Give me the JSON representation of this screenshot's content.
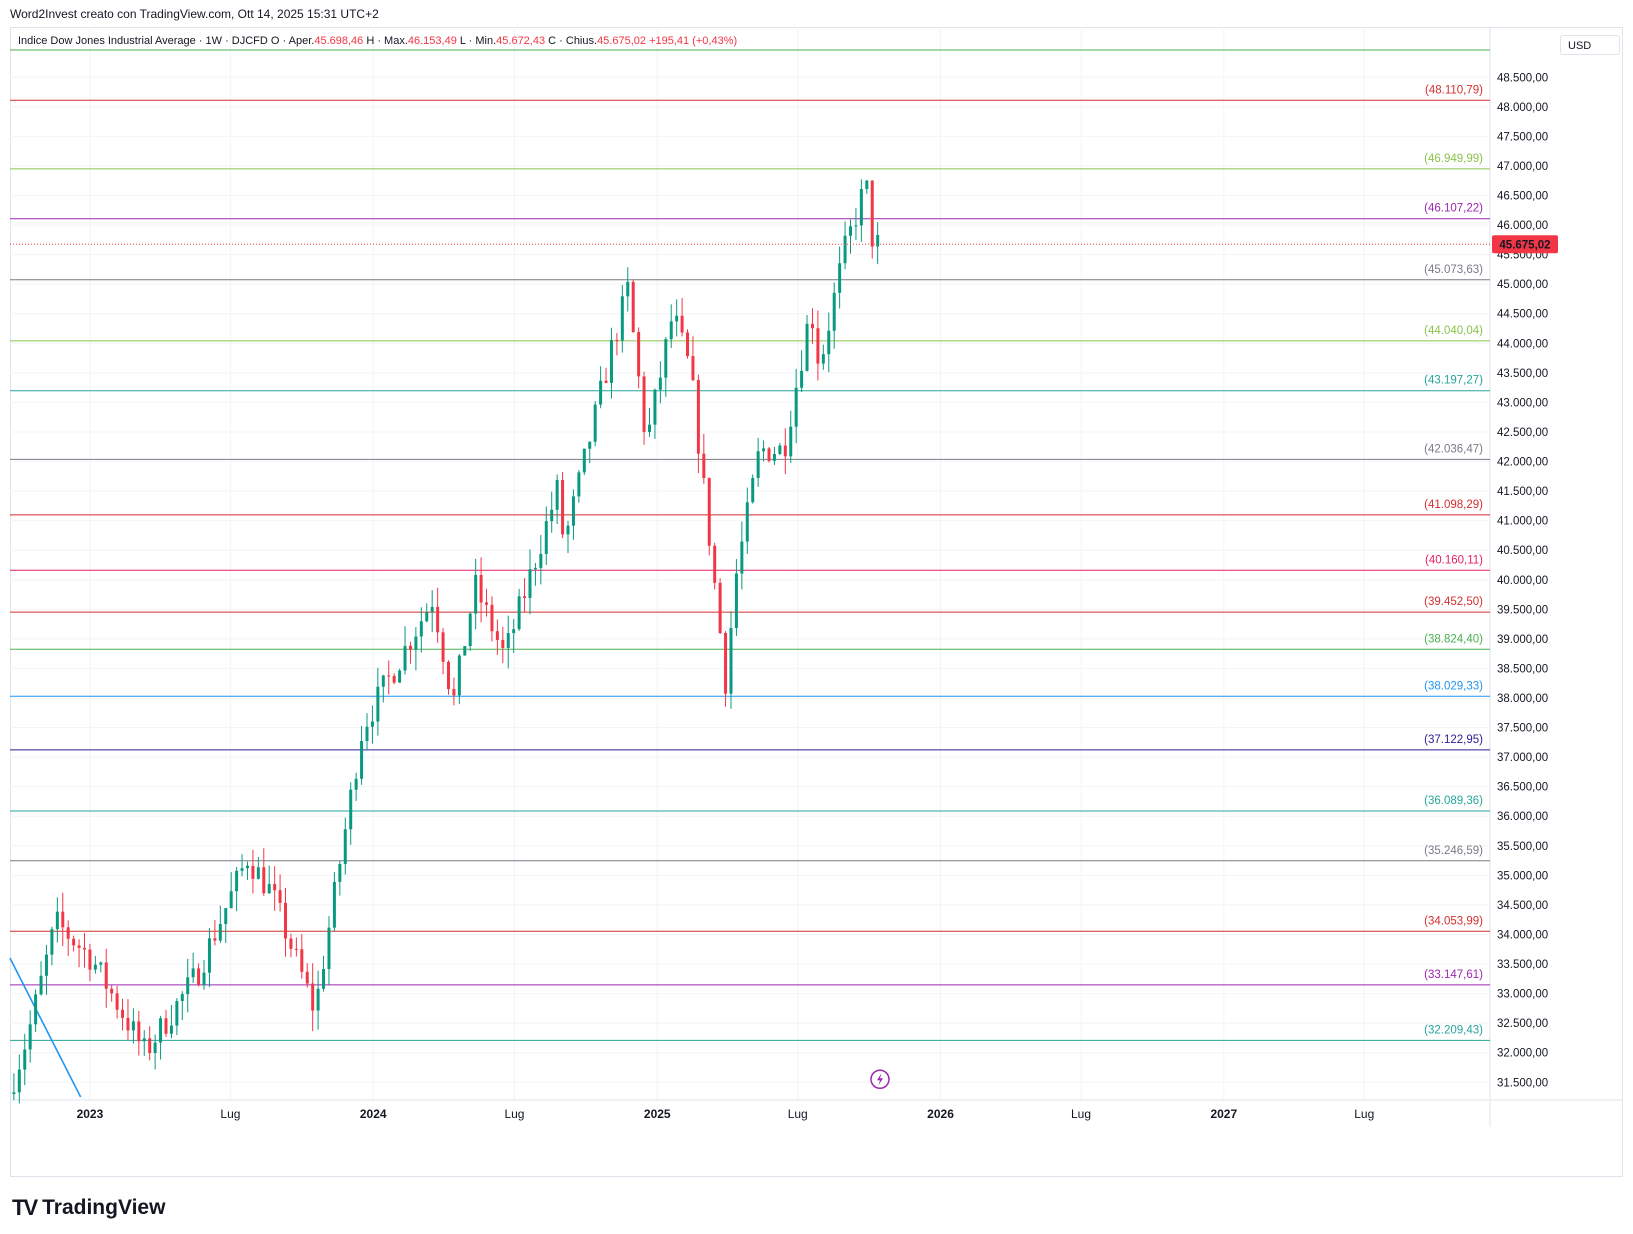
{
  "header": {
    "credit": "Word2Invest creato con TradingView.com, Ott 14, 2025 15:31 UTC+2"
  },
  "symbol_line": {
    "name": "Indice Dow Jones Industrial Average · 1W · DJCFD",
    "open_label": "O · Aper.",
    "open_value": "45.698,46",
    "high_label": "H · Max.",
    "high_value": "46.153,49",
    "low_label": "L · Min.",
    "low_value": "45.672,43",
    "close_label": "C · Chius.",
    "close_value": "45.675,02",
    "change_value": "+195,41 (+0,43%)"
  },
  "currency": "USD",
  "footer": {
    "brand": "TradingView"
  },
  "colors": {
    "up": "#089981",
    "down": "#f23645",
    "price_tag": "#f23645",
    "trend_line": "#2196f3"
  },
  "chart_data": {
    "type": "candlestick",
    "interval": "1W",
    "x_ticks": [
      {
        "date": "2023-01-01",
        "label": "2023",
        "year": true
      },
      {
        "date": "2023-07-01",
        "label": "Lug",
        "year": false
      },
      {
        "date": "2024-01-01",
        "label": "2024",
        "year": true
      },
      {
        "date": "2024-07-01",
        "label": "Lug",
        "year": false
      },
      {
        "date": "2025-01-01",
        "label": "2025",
        "year": true
      },
      {
        "date": "2025-07-01",
        "label": "Lug",
        "year": false
      },
      {
        "date": "2026-01-01",
        "label": "2026",
        "year": true
      },
      {
        "date": "2026-07-01",
        "label": "Lug",
        "year": false
      },
      {
        "date": "2027-01-01",
        "label": "2027",
        "year": true
      },
      {
        "date": "2027-07-01",
        "label": "Lug",
        "year": false
      }
    ],
    "xlim": [
      "2022-09-20",
      "2027-12-10"
    ],
    "ylim": [
      31200,
      49350
    ],
    "y_ticks": [
      {
        "value": 31500,
        "label": "31.500,00"
      },
      {
        "value": 32000,
        "label": "32.000,00"
      },
      {
        "value": 32500,
        "label": "32.500,00"
      },
      {
        "value": 33000,
        "label": "33.000,00"
      },
      {
        "value": 33500,
        "label": "33.500,00"
      },
      {
        "value": 34000,
        "label": "34.000,00"
      },
      {
        "value": 34500,
        "label": "34.500,00"
      },
      {
        "value": 35000,
        "label": "35.000,00"
      },
      {
        "value": 35500,
        "label": "35.500,00"
      },
      {
        "value": 36000,
        "label": "36.000,00"
      },
      {
        "value": 36500,
        "label": "36.500,00"
      },
      {
        "value": 37000,
        "label": "37.000,00"
      },
      {
        "value": 37500,
        "label": "37.500,00"
      },
      {
        "value": 38000,
        "label": "38.000,00"
      },
      {
        "value": 38500,
        "label": "38.500,00"
      },
      {
        "value": 39000,
        "label": "39.000,00"
      },
      {
        "value": 39500,
        "label": "39.500,00"
      },
      {
        "value": 40000,
        "label": "40.000,00"
      },
      {
        "value": 40500,
        "label": "40.500,00"
      },
      {
        "value": 41000,
        "label": "41.000,00"
      },
      {
        "value": 41500,
        "label": "41.500,00"
      },
      {
        "value": 42000,
        "label": "42.000,00"
      },
      {
        "value": 42500,
        "label": "42.500,00"
      },
      {
        "value": 43000,
        "label": "43.000,00"
      },
      {
        "value": 43500,
        "label": "43.500,00"
      },
      {
        "value": 44000,
        "label": "44.000,00"
      },
      {
        "value": 44500,
        "label": "44.500,00"
      },
      {
        "value": 45000,
        "label": "45.000,00"
      },
      {
        "value": 45500,
        "label": "45.500,00"
      },
      {
        "value": 46000,
        "label": "46.000,00"
      },
      {
        "value": 46500,
        "label": "46.500,00"
      },
      {
        "value": 47000,
        "label": "47.000,00"
      },
      {
        "value": 47500,
        "label": "47.500,00"
      },
      {
        "value": 48000,
        "label": "48.000,00"
      },
      {
        "value": 48500,
        "label": "48.500,00"
      }
    ],
    "last_price": {
      "value": 45675.02,
      "label": "45.675,02"
    },
    "levels": [
      {
        "value": 48960,
        "label": "",
        "color": "#4caf50"
      },
      {
        "value": 48110.79,
        "label": "(48.110,79)",
        "color": "#d32f2f"
      },
      {
        "value": 46949.99,
        "label": "(46.949,99)",
        "color": "#8bc34a"
      },
      {
        "value": 46107.22,
        "label": "(46.107,22)",
        "color": "#9c27b0"
      },
      {
        "value": 45073.63,
        "label": "(45.073,63)",
        "color": "#787b86"
      },
      {
        "value": 44040.04,
        "label": "(44.040,04)",
        "color": "#8bc34a"
      },
      {
        "value": 43197.27,
        "label": "(43.197,27)",
        "color": "#26a69a"
      },
      {
        "value": 42036.47,
        "label": "(42.036,47)",
        "color": "#787b86"
      },
      {
        "value": 41098.29,
        "label": "(41.098,29)",
        "color": "#d32f2f"
      },
      {
        "value": 40160.11,
        "label": "(40.160,11)",
        "color": "#e91e63"
      },
      {
        "value": 39452.5,
        "label": "(39.452,50)",
        "color": "#d32f2f"
      },
      {
        "value": 38824.4,
        "label": "(38.824,40)",
        "color": "#4caf50"
      },
      {
        "value": 38029.33,
        "label": "(38.029,33)",
        "color": "#2196f3"
      },
      {
        "value": 37122.95,
        "label": "(37.122,95)",
        "color": "#311b92"
      },
      {
        "value": 36089.36,
        "label": "(36.089,36)",
        "color": "#26a69a"
      },
      {
        "value": 35246.59,
        "label": "(35.246,59)",
        "color": "#787b86"
      },
      {
        "value": 34053.99,
        "label": "(34.053,99)",
        "color": "#d32f2f"
      },
      {
        "value": 33147.61,
        "label": "(33.147,61)",
        "color": "#9c27b0"
      },
      {
        "value": 32209.43,
        "label": "(32.209,43)",
        "color": "#26a69a"
      }
    ],
    "trend_line": {
      "start": {
        "date": "2022-09-20",
        "value": 33600
      },
      "end": {
        "date": "2022-12-20",
        "value": 31250
      }
    },
    "dividend_marker": {
      "date": "2025-10-15",
      "value": 31550
    },
    "anchors": [
      {
        "date": "2022-09-25",
        "value": 31300
      },
      {
        "date": "2022-10-20",
        "value": 32300
      },
      {
        "date": "2022-11-25",
        "value": 34200
      },
      {
        "date": "2023-01-10",
        "value": 33600
      },
      {
        "date": "2023-03-20",
        "value": 32000
      },
      {
        "date": "2023-05-25",
        "value": 33300
      },
      {
        "date": "2023-07-30",
        "value": 35300
      },
      {
        "date": "2023-08-30",
        "value": 34700
      },
      {
        "date": "2023-10-25",
        "value": 32700
      },
      {
        "date": "2023-12-25",
        "value": 37500
      },
      {
        "date": "2024-03-25",
        "value": 39700
      },
      {
        "date": "2024-04-20",
        "value": 37900
      },
      {
        "date": "2024-05-18",
        "value": 39900
      },
      {
        "date": "2024-06-25",
        "value": 38700
      },
      {
        "date": "2024-09-01",
        "value": 41500
      },
      {
        "date": "2024-09-10",
        "value": 40600
      },
      {
        "date": "2024-11-10",
        "value": 43900
      },
      {
        "date": "2024-12-01",
        "value": 44900
      },
      {
        "date": "2024-12-25",
        "value": 42300
      },
      {
        "date": "2025-01-28",
        "value": 44500
      },
      {
        "date": "2025-02-20",
        "value": 43500
      },
      {
        "date": "2025-04-06",
        "value": 38300
      },
      {
        "date": "2025-04-20",
        "value": 40100
      },
      {
        "date": "2025-05-20",
        "value": 42200
      },
      {
        "date": "2025-06-20",
        "value": 42200
      },
      {
        "date": "2025-07-25",
        "value": 44600
      },
      {
        "date": "2025-08-05",
        "value": 43600
      },
      {
        "date": "2025-09-05",
        "value": 45500
      },
      {
        "date": "2025-10-04",
        "value": 46700
      },
      {
        "date": "2025-10-13",
        "value": 45675
      }
    ]
  }
}
